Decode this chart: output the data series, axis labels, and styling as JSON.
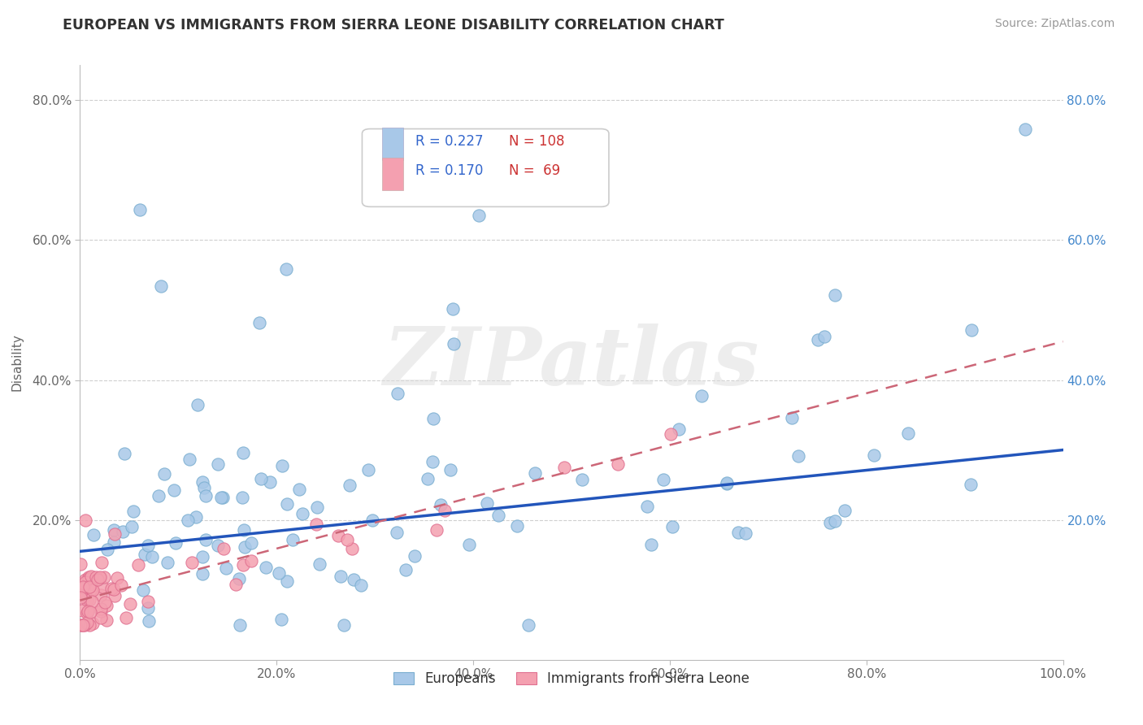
{
  "title": "EUROPEAN VS IMMIGRANTS FROM SIERRA LEONE DISABILITY CORRELATION CHART",
  "source": "Source: ZipAtlas.com",
  "ylabel": "Disability",
  "xlim": [
    0.0,
    1.0
  ],
  "ylim": [
    0.0,
    0.85
  ],
  "xticks": [
    0.0,
    0.2,
    0.4,
    0.6,
    0.8,
    1.0
  ],
  "xtick_labels": [
    "0.0%",
    "20.0%",
    "40.0%",
    "60.0%",
    "80.0%",
    "100.0%"
  ],
  "yticks": [
    0.2,
    0.4,
    0.6,
    0.8
  ],
  "ytick_labels": [
    "20.0%",
    "40.0%",
    "60.0%",
    "80.0%"
  ],
  "european_color": "#a8c8e8",
  "european_edge_color": "#7aaed0",
  "sierra_leone_color": "#f4a0b0",
  "sierra_leone_edge_color": "#e07090",
  "european_line_color": "#2255bb",
  "sierra_leone_line_color": "#cc6677",
  "R_european": 0.227,
  "N_european": 108,
  "R_sierra_leone": 0.17,
  "N_sierra_leone": 69,
  "legend_R_color": "#3366cc",
  "legend_N_color": "#cc3333",
  "watermark_color": "#dddddd",
  "background_color": "#ffffff",
  "grid_color": "#bbbbbb",
  "eu_line_intercept": 0.155,
  "eu_line_slope": 0.145,
  "sl_line_intercept": 0.085,
  "sl_line_slope": 0.37
}
